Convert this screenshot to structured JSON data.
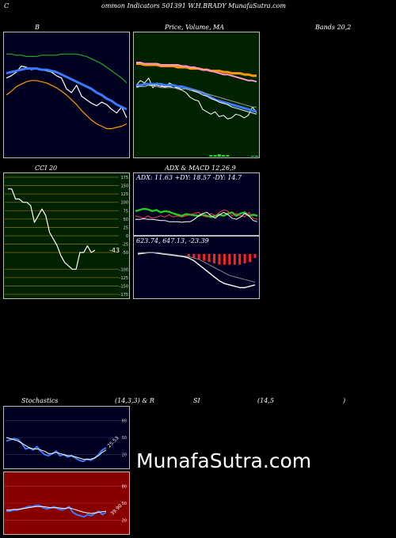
{
  "header": {
    "left_letter": "C",
    "title": "ommon  Indicators 501391 W.H.BRADY MunafaSutra.com"
  },
  "panel_titles": {
    "b": "B",
    "price": "Price,  Volume,  MA",
    "bands": "Bands 20,2",
    "cci": "CCI 20",
    "adx": "ADX  & MACD 12,26,9",
    "stoch_a": "Stochastics",
    "stoch_b": "(14,3,3) & R",
    "stoch_c": "SI",
    "stoch_d": "(14,5",
    "stoch_e": ")"
  },
  "watermark": "MunafaSutra.com",
  "colors": {
    "navy": "#000020",
    "price_bg": "#002200",
    "cci_bg": "#002200",
    "rsi_bg": "#880000",
    "blue": "#3a7bff",
    "white": "#ffffff",
    "green": "#22aa22",
    "orange": "#ff9900",
    "pink": "#ff99cc",
    "grid_olive": "#7a6a10",
    "red": "#ff2222"
  },
  "chart_data": [
    {
      "id": "bollinger",
      "type": "line",
      "title": "B",
      "ylim": [
        0,
        100
      ],
      "series": [
        {
          "role": "price",
          "color": "#ffffff",
          "values": [
            64,
            66,
            69,
            74,
            73,
            71,
            72,
            71,
            70,
            69,
            66,
            64,
            55,
            52,
            58,
            49,
            46,
            43,
            41,
            44,
            42,
            38,
            35,
            40,
            31
          ]
        },
        {
          "role": "mid",
          "color": "#3a7bff",
          "values": [
            68,
            69,
            70,
            71,
            72,
            72,
            72,
            71,
            71,
            70,
            69,
            67,
            65,
            63,
            61,
            59,
            57,
            55,
            52,
            50,
            47,
            45,
            42,
            40,
            38
          ]
        },
        {
          "role": "upper",
          "color": "#22aa22",
          "values": [
            84,
            84,
            83,
            83,
            82,
            82,
            82,
            83,
            83,
            83,
            83,
            84,
            84,
            84,
            84,
            83,
            82,
            80,
            78,
            76,
            73,
            70,
            67,
            64,
            60
          ]
        },
        {
          "role": "lower",
          "color": "#ff9900",
          "values": [
            50,
            53,
            57,
            59,
            61,
            62,
            62,
            61,
            60,
            58,
            56,
            53,
            50,
            46,
            42,
            37,
            33,
            29,
            26,
            24,
            22,
            22,
            23,
            24,
            26
          ]
        }
      ]
    },
    {
      "id": "price_ma",
      "type": "line",
      "title": "Price,  Volume,  MA",
      "ylim": [
        0,
        100
      ],
      "series": [
        {
          "role": "price",
          "color": "#ffffff",
          "values": [
            58,
            62,
            60,
            64,
            56,
            60,
            58,
            56,
            60,
            58,
            55,
            54,
            52,
            48,
            46,
            45,
            38,
            36,
            34,
            36,
            32,
            33,
            30,
            31,
            34,
            33,
            31,
            33,
            40,
            35
          ]
        },
        {
          "role": "ma_blue",
          "color": "#3a7bff",
          "values": [
            58,
            58,
            59,
            59,
            59,
            59,
            59,
            58,
            58,
            58,
            57,
            57,
            56,
            55,
            54,
            53,
            52,
            50,
            48,
            46,
            45,
            44,
            43,
            42,
            41,
            40,
            39,
            38,
            37,
            36
          ]
        },
        {
          "role": "ma_white",
          "color": "#ffffff",
          "values": [
            57,
            57,
            57,
            58,
            58,
            58,
            57,
            57,
            57,
            56,
            56,
            55,
            55,
            54,
            53,
            52,
            50,
            49,
            47,
            46,
            44,
            43,
            42,
            40,
            39,
            38,
            37,
            36,
            35,
            34
          ]
        },
        {
          "role": "ma_orange",
          "color": "#ff9900",
          "values": [
            76,
            76,
            75,
            75,
            75,
            75,
            74,
            74,
            74,
            74,
            73,
            73,
            73,
            72,
            72,
            72,
            71,
            71,
            70,
            70,
            70,
            69,
            69,
            68,
            68,
            68,
            67,
            67,
            66,
            66
          ]
        },
        {
          "role": "ma_pink",
          "color": "#ff99cc",
          "values": [
            77,
            77,
            76,
            76,
            76,
            76,
            75,
            75,
            75,
            75,
            75,
            74,
            74,
            73,
            73,
            72,
            71,
            71,
            70,
            69,
            68,
            67,
            67,
            66,
            65,
            64,
            63,
            62,
            62,
            61
          ]
        },
        {
          "role": "ma_grey",
          "color": "#999999",
          "values": [
            56,
            57,
            57,
            58,
            57,
            57,
            56,
            56,
            56,
            56,
            55,
            55,
            55,
            54,
            54,
            53,
            52,
            51,
            50,
            49,
            48,
            47,
            46,
            45,
            44,
            43,
            42,
            41,
            40,
            40
          ]
        }
      ],
      "volume": [
        0,
        0,
        0,
        0,
        0,
        0,
        0,
        0,
        0,
        0,
        0,
        0,
        0,
        0,
        0,
        0,
        0,
        0,
        2,
        2,
        3,
        2,
        2,
        0,
        0,
        0,
        0,
        0,
        1,
        1
      ]
    },
    {
      "id": "cci",
      "type": "line",
      "title": "CCI 20",
      "ylim": [
        -175,
        175
      ],
      "ticks": [
        175,
        150,
        125,
        100,
        75,
        50,
        25,
        0,
        -25,
        -50,
        -100,
        -125,
        -150,
        -175
      ],
      "tick_labels": [
        "175",
        "150",
        "125",
        "100",
        "75",
        "50",
        "25",
        "0",
        "-25",
        "-50",
        "-100",
        "-125",
        "-150",
        "-175"
      ],
      "last_label": "-43",
      "values": [
        140,
        140,
        110,
        110,
        100,
        100,
        90,
        40,
        60,
        80,
        60,
        10,
        -10,
        -30,
        -60,
        -80,
        -90,
        -100,
        -100,
        -50,
        -50,
        -30,
        -50,
        -43
      ]
    },
    {
      "id": "adx",
      "type": "line",
      "title": "ADX",
      "info": "ADX: 11.63  +DY: 18.57  -DY: 14.7",
      "ylim": [
        0,
        100
      ],
      "series": [
        {
          "role": "plus_di",
          "color": "#22cc22",
          "values": [
            38,
            40,
            42,
            41,
            38,
            40,
            36,
            38,
            37,
            34,
            32,
            30,
            33,
            32,
            31,
            30,
            32,
            30,
            28,
            30,
            32,
            30,
            34,
            36,
            30,
            34,
            36,
            30,
            32,
            30
          ]
        },
        {
          "role": "minus_di",
          "color": "#ff4444",
          "values": [
            30,
            28,
            26,
            30,
            26,
            28,
            30,
            28,
            32,
            28,
            30,
            28,
            30,
            32,
            34,
            36,
            30,
            28,
            34,
            30,
            36,
            40,
            38,
            30,
            34,
            30,
            28,
            36,
            26,
            24
          ]
        },
        {
          "role": "adx",
          "color": "#ffffff",
          "values": [
            24,
            24,
            25,
            24,
            24,
            23,
            22,
            22,
            20,
            20,
            20,
            19,
            20,
            20,
            24,
            30,
            34,
            36,
            30,
            26,
            32,
            36,
            32,
            26,
            24,
            28,
            34,
            30,
            22,
            20
          ]
        }
      ]
    },
    {
      "id": "macd",
      "type": "bar",
      "title": "MACD 12,26,9",
      "info": "623.74,  647.13,  -23.39",
      "ylim": [
        -30,
        10
      ],
      "macd": [
        0,
        0.5,
        1,
        1,
        0.5,
        0,
        -0.5,
        -1,
        -1.5,
        -2,
        -3,
        -5,
        -8,
        -11,
        -14,
        -17,
        -20,
        -22,
        -23,
        -24,
        -25,
        -25,
        -24,
        -23
      ],
      "signal": [
        1,
        1,
        1,
        1,
        1,
        0.5,
        0,
        -0.5,
        -1,
        -1.5,
        -2,
        -3,
        -4,
        -6,
        -8,
        -10,
        -12,
        -14,
        -16,
        -17,
        -18,
        -19,
        -20,
        -21
      ],
      "histogram": [
        0,
        0,
        0,
        0,
        0,
        0,
        0,
        0,
        0,
        0,
        -2,
        -3,
        -4,
        -5,
        -6,
        -7,
        -8,
        -8,
        -8,
        -8,
        -8,
        -7,
        -6,
        -3
      ]
    },
    {
      "id": "stochastics",
      "type": "line",
      "title": "Stochastics (14,3,3)",
      "ylim": [
        0,
        100
      ],
      "ticks": [
        80,
        50,
        20
      ],
      "tick_labels": [
        "80",
        "50",
        "20"
      ],
      "last_label": "25.53",
      "series": [
        {
          "role": "k",
          "color": "#3a7bff",
          "values": [
            44,
            46,
            48,
            47,
            40,
            30,
            32,
            28,
            34,
            26,
            20,
            18,
            22,
            26,
            18,
            20,
            16,
            18,
            14,
            10,
            8,
            12,
            10,
            14,
            20,
            28,
            32
          ]
        },
        {
          "role": "d",
          "color": "#ffffff",
          "values": [
            50,
            48,
            46,
            44,
            40,
            36,
            32,
            30,
            30,
            28,
            26,
            22,
            22,
            24,
            22,
            20,
            18,
            18,
            16,
            14,
            12,
            12,
            12,
            14,
            18,
            24,
            28
          ]
        }
      ]
    },
    {
      "id": "rsi",
      "type": "line",
      "title": "RSI (14,5)",
      "ylim": [
        0,
        100
      ],
      "ticks": [
        80,
        50,
        20
      ],
      "tick_labels": [
        "80",
        "50",
        "20"
      ],
      "last_label": "39.90",
      "series": [
        {
          "role": "rsi",
          "color": "#3a7bff",
          "values": [
            36,
            36,
            38,
            38,
            40,
            42,
            44,
            44,
            46,
            46,
            42,
            40,
            42,
            44,
            40,
            38,
            40,
            44,
            34,
            30,
            28,
            26,
            30,
            28,
            32,
            36,
            30,
            34
          ]
        },
        {
          "role": "smooth",
          "color": "#ffffff",
          "values": [
            38,
            38,
            39,
            39,
            40,
            41,
            42,
            43,
            44,
            44,
            44,
            43,
            42,
            42,
            42,
            41,
            41,
            42,
            40,
            38,
            36,
            34,
            33,
            32,
            33,
            34,
            35,
            36
          ]
        }
      ]
    }
  ]
}
